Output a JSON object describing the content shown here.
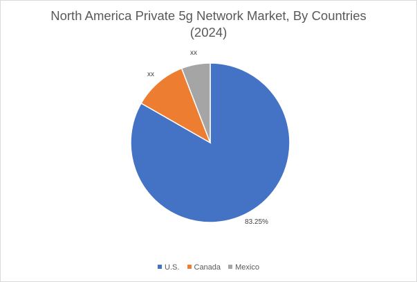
{
  "chart_data": {
    "type": "pie",
    "title_line1": "North America Private 5g Network Market, By Countries",
    "title_line2": "(2024)",
    "categories": [
      "U.S.",
      "Canada",
      "Mexico"
    ],
    "values": [
      83.25,
      10.9,
      5.85
    ],
    "data_labels": [
      "83.25%",
      "xx",
      "xx"
    ],
    "colors": [
      "#4472C4",
      "#ED7D31",
      "#A5A5A5"
    ],
    "legend_position": "bottom"
  }
}
